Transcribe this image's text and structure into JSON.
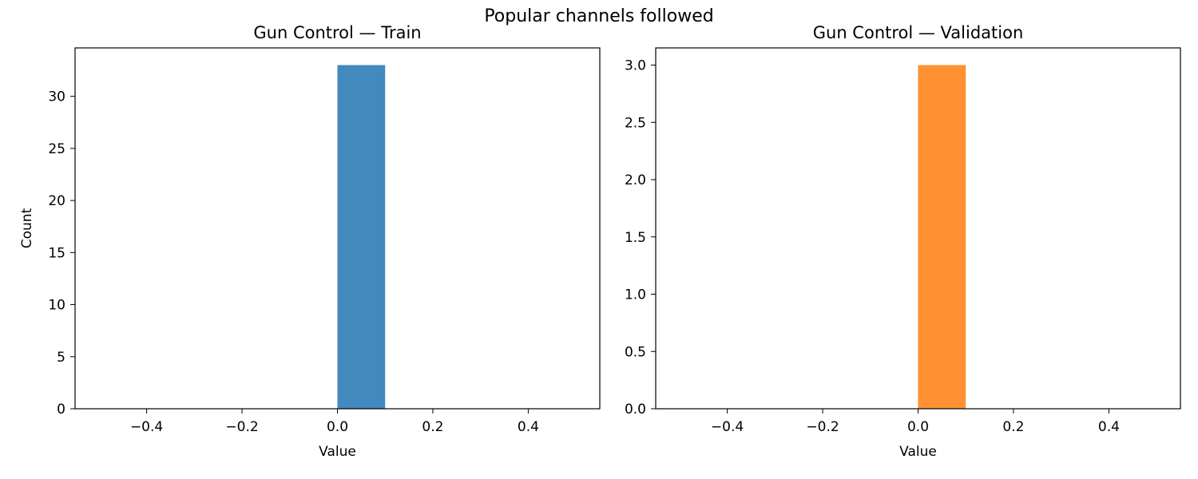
{
  "suptitle": "Popular channels followed",
  "chart_data": [
    {
      "type": "bar",
      "title": "Gun Control — Train",
      "xlabel": "Value",
      "ylabel": "Count",
      "xlim": [
        -0.55,
        0.55
      ],
      "ylim": [
        0,
        34.65
      ],
      "xticks": [
        -0.4,
        -0.2,
        0.0,
        0.2,
        0.4
      ],
      "xtick_labels": [
        "−0.4",
        "−0.2",
        "0.0",
        "0.2",
        "0.4"
      ],
      "yticks": [
        0,
        5,
        10,
        15,
        20,
        25,
        30
      ],
      "ytick_labels": [
        "0",
        "5",
        "10",
        "15",
        "20",
        "25",
        "30"
      ],
      "bins": [
        {
          "x0": 0.0,
          "x1": 0.1,
          "value": 33
        }
      ],
      "color": "#4289be",
      "grid": false
    },
    {
      "type": "bar",
      "title": "Gun Control — Validation",
      "xlabel": "Value",
      "ylabel": "",
      "xlim": [
        -0.55,
        0.55
      ],
      "ylim": [
        0,
        3.15
      ],
      "xticks": [
        -0.4,
        -0.2,
        0.0,
        0.2,
        0.4
      ],
      "xtick_labels": [
        "−0.4",
        "−0.2",
        "0.0",
        "0.2",
        "0.4"
      ],
      "yticks": [
        0.0,
        0.5,
        1.0,
        1.5,
        2.0,
        2.5,
        3.0
      ],
      "ytick_labels": [
        "0.0",
        "0.5",
        "1.0",
        "1.5",
        "2.0",
        "2.5",
        "3.0"
      ],
      "bins": [
        {
          "x0": 0.0,
          "x1": 0.1,
          "value": 3
        }
      ],
      "color": "#ff9133",
      "grid": false
    }
  ]
}
